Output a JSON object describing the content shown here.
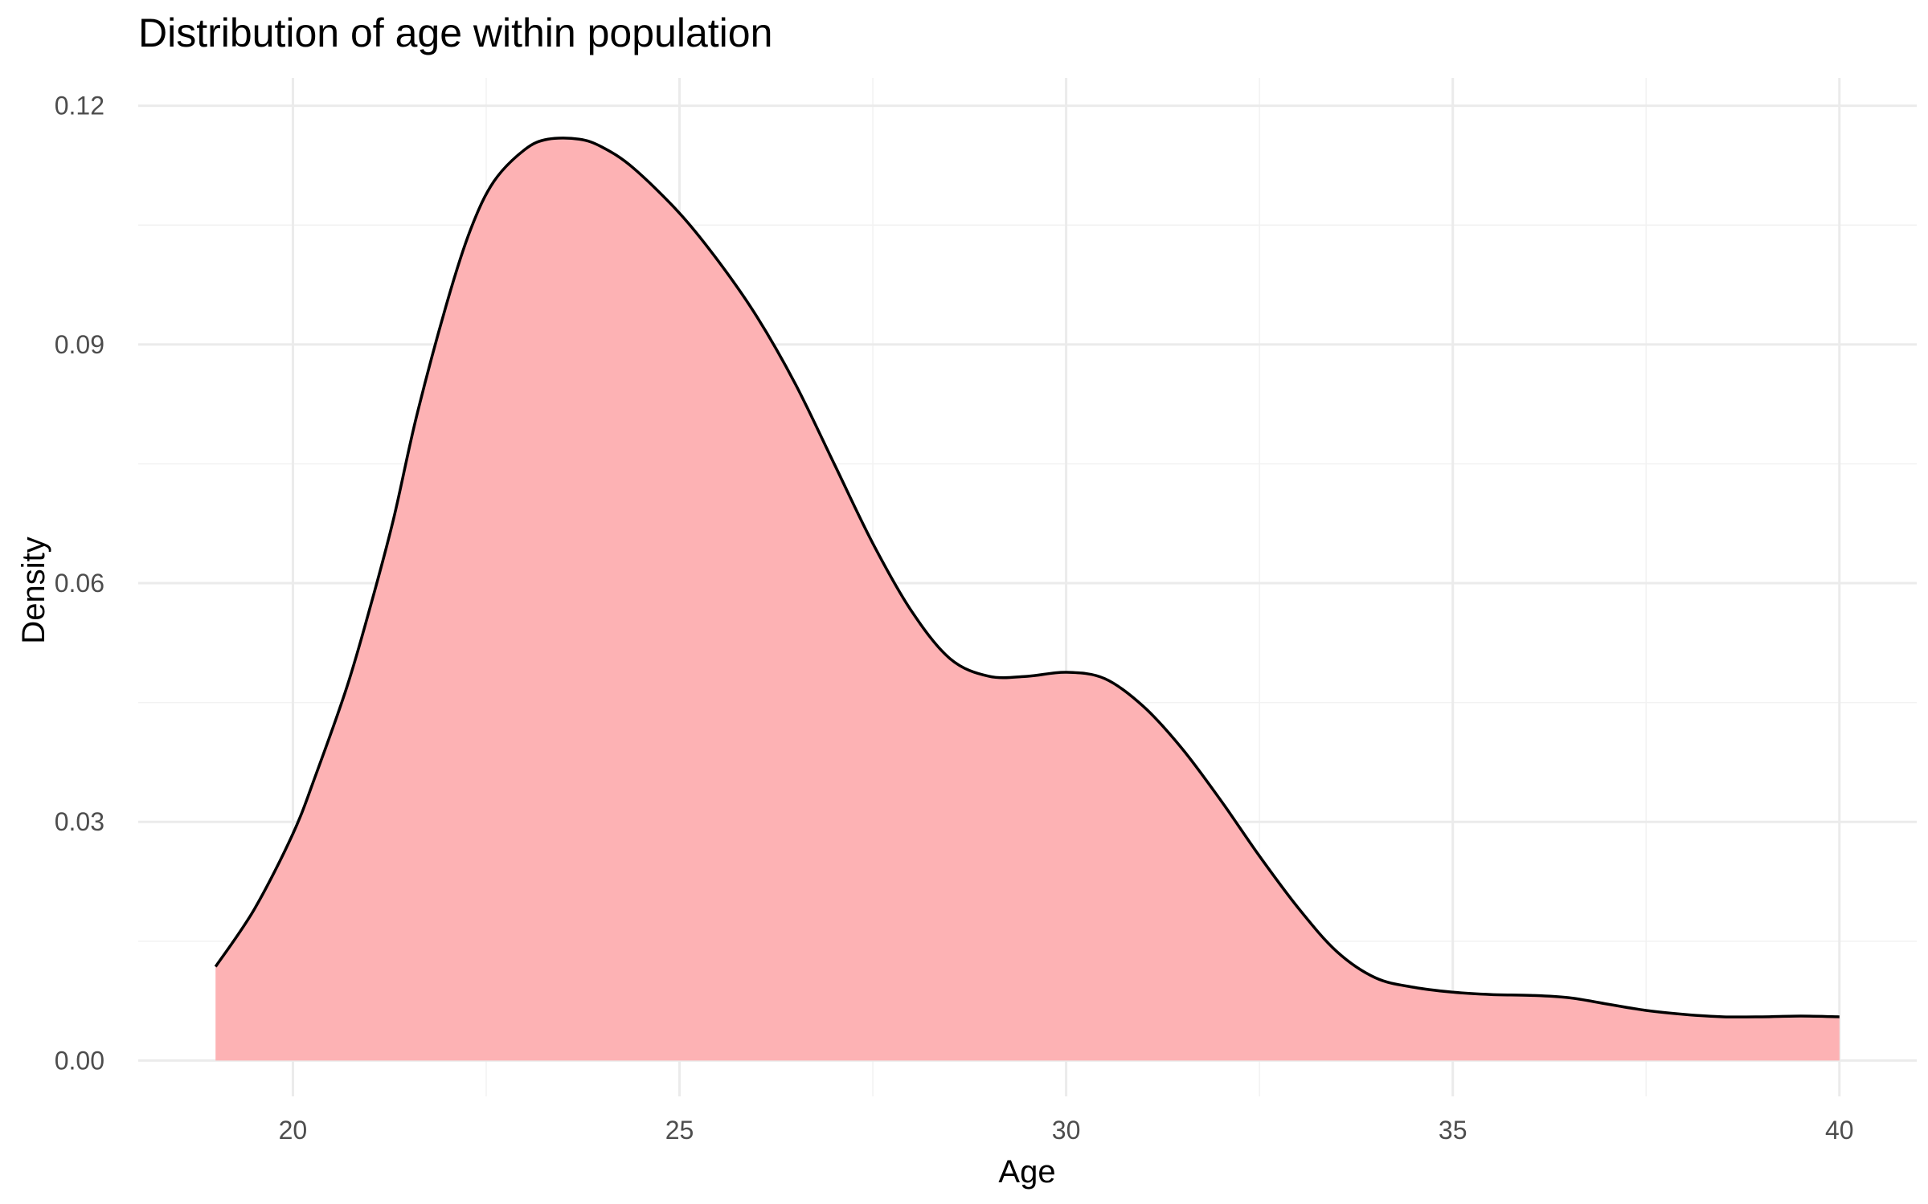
{
  "chart_data": {
    "type": "area",
    "title": "Distribution of age within population",
    "xlabel": "Age",
    "ylabel": "Density",
    "xlim": [
      18,
      41
    ],
    "ylim": [
      -0.0045,
      0.1235
    ],
    "x_ticks": [
      20,
      25,
      30,
      35,
      40
    ],
    "x_tick_labels": [
      "20",
      "25",
      "30",
      "35",
      "40"
    ],
    "y_ticks": [
      0.0,
      0.03,
      0.06,
      0.09,
      0.12
    ],
    "y_tick_labels": [
      "0.00",
      "0.03",
      "0.06",
      "0.09",
      "0.12"
    ],
    "grid": true,
    "legend": "none",
    "fill_color": "#fdb0b2",
    "line_color": "#000000",
    "series": [
      {
        "x": [
          19.0,
          19.5,
          20.0,
          20.3,
          20.7,
          21.0,
          21.3,
          21.6,
          22.0,
          22.3,
          22.6,
          23.0,
          23.3,
          23.7,
          24.0,
          24.4,
          25.0,
          25.5,
          26.0,
          26.5,
          27.0,
          27.5,
          28.0,
          28.5,
          29.0,
          29.5,
          30.0,
          30.5,
          31.0,
          31.5,
          32.0,
          32.5,
          33.0,
          33.5,
          34.0,
          34.5,
          35.0,
          35.5,
          36.0,
          36.5,
          37.0,
          37.5,
          38.0,
          38.5,
          39.0,
          39.5,
          40.0
        ],
        "y": [
          0.0118,
          0.019,
          0.0285,
          0.036,
          0.047,
          0.057,
          0.068,
          0.081,
          0.0955,
          0.1045,
          0.1105,
          0.1145,
          0.1158,
          0.1158,
          0.1148,
          0.1122,
          0.1065,
          0.1005,
          0.0935,
          0.085,
          0.075,
          0.065,
          0.0565,
          0.0505,
          0.0483,
          0.0483,
          0.0488,
          0.048,
          0.0445,
          0.0392,
          0.0327,
          0.0257,
          0.0192,
          0.0137,
          0.0104,
          0.0092,
          0.0086,
          0.0083,
          0.0082,
          0.0079,
          0.0071,
          0.0063,
          0.0058,
          0.0055,
          0.0055,
          0.0056,
          0.0055
        ]
      }
    ]
  }
}
